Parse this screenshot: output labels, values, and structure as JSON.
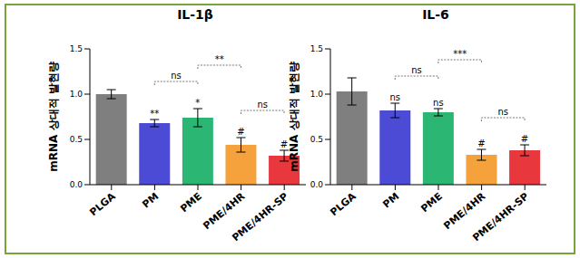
{
  "chart_data": [
    {
      "type": "bar",
      "title": "IL-1β",
      "y_label": "mRNA 상대적 발현량",
      "categories": [
        "PLGA",
        "PM",
        "PME",
        "PME/4HR",
        "PME/4HR-SP"
      ],
      "values": [
        1.0,
        0.68,
        0.74,
        0.44,
        0.32
      ],
      "errors": [
        0.05,
        0.04,
        0.1,
        0.08,
        0.06
      ],
      "colors": [
        "#7f7f7f",
        "#4b4bd6",
        "#2bb673",
        "#f5a13c",
        "#e8383d"
      ],
      "annotations": [
        {
          "category": "PM",
          "text": "**"
        },
        {
          "category": "PME",
          "text": "*"
        },
        {
          "category": "PME/4HR",
          "text": "#"
        },
        {
          "category": "PME/4HR-SP",
          "text": "#"
        }
      ],
      "comparisons": [
        {
          "between": [
            "PM",
            "PME"
          ],
          "text": "ns"
        },
        {
          "between": [
            "PME",
            "PME/4HR"
          ],
          "text": "**"
        },
        {
          "between": [
            "PME/4HR",
            "PME/4HR-SP"
          ],
          "text": "ns"
        }
      ],
      "ylim": [
        0,
        1.5
      ],
      "yticks": [
        {
          "value": 0,
          "label": "0.0"
        },
        {
          "value": 0.5,
          "label": "0.5"
        },
        {
          "value": 1,
          "label": "1.0"
        },
        {
          "value": 1.5,
          "label": "1.5"
        }
      ]
    },
    {
      "type": "bar",
      "title": "IL-6",
      "y_label": "mRNA 상대적 발현량",
      "categories": [
        "PLGA",
        "PM",
        "PME",
        "PME/4HR",
        "PME/4HR-SP"
      ],
      "values": [
        1.03,
        0.82,
        0.8,
        0.33,
        0.38
      ],
      "errors": [
        0.15,
        0.08,
        0.04,
        0.06,
        0.06
      ],
      "colors": [
        "#7f7f7f",
        "#4b4bd6",
        "#2bb673",
        "#f5a13c",
        "#e8383d"
      ],
      "annotations": [
        {
          "category": "PM",
          "text": "ns"
        },
        {
          "category": "PME",
          "text": "ns"
        },
        {
          "category": "PME/4HR",
          "text": "#"
        },
        {
          "category": "PME/4HR-SP",
          "text": "#"
        }
      ],
      "comparisons": [
        {
          "between": [
            "PM",
            "PME"
          ],
          "text": "ns"
        },
        {
          "between": [
            "PME",
            "PME/4HR"
          ],
          "text": "***"
        },
        {
          "between": [
            "PME/4HR",
            "PME/4HR-SP"
          ],
          "text": "ns"
        }
      ],
      "ylim": [
        0,
        1.5
      ],
      "yticks": [
        {
          "value": 0,
          "label": "0.0"
        },
        {
          "value": 0.5,
          "label": "0.5"
        },
        {
          "value": 1,
          "label": "1.0"
        },
        {
          "value": 1.5,
          "label": "1.5"
        }
      ]
    }
  ]
}
